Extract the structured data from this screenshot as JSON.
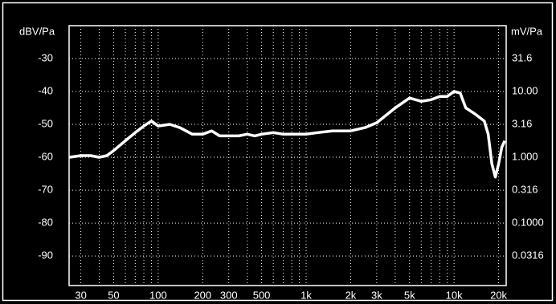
{
  "chart_data": {
    "type": "line",
    "y_label": "dBV/Pa",
    "y2_label": "mV/Pa",
    "x": [
      25,
      30,
      35,
      40,
      45,
      50,
      60,
      70,
      80,
      90,
      100,
      120,
      140,
      170,
      200,
      230,
      260,
      300,
      350,
      400,
      450,
      500,
      600,
      700,
      800,
      1000,
      1200,
      1500,
      2000,
      2500,
      3000,
      4000,
      5000,
      6000,
      7000,
      8000,
      9000,
      10000,
      11000,
      12000,
      14000,
      16000,
      17000,
      18000,
      19000,
      20000,
      21000,
      22000
    ],
    "series": [
      {
        "color": "#ffffff",
        "values": [
          -60,
          -59.5,
          -59.5,
          -60,
          -59.5,
          -58,
          -55,
          -52.5,
          -50.5,
          -49,
          -50.5,
          -50,
          -51,
          -53,
          -53,
          -52,
          -53.5,
          -53.5,
          -53.5,
          -53,
          -53.5,
          -53,
          -52.5,
          -53,
          -53,
          -53,
          -52.5,
          -52,
          -52,
          -51,
          -49.5,
          -45,
          -42,
          -43,
          -42.5,
          -41.5,
          -41.5,
          -40,
          -40.5,
          -45,
          -47,
          -49,
          -53,
          -62,
          -66,
          -62,
          -57,
          -55
        ]
      }
    ],
    "xlog": true,
    "xlim": [
      25,
      22500
    ],
    "xticks": [
      30,
      50,
      100,
      200,
      300,
      500,
      {
        "value": 1000,
        "label": "1k"
      },
      {
        "value": 2000,
        "label": "2k"
      },
      {
        "value": 3000,
        "label": "3k"
      },
      {
        "value": 5000,
        "label": "5k"
      },
      {
        "value": 10000,
        "label": "10k"
      },
      {
        "value": 20000,
        "label": "20k"
      }
    ],
    "xminor": [
      40,
      60,
      70,
      80,
      90,
      400,
      600,
      700,
      800,
      900,
      4000,
      6000,
      7000,
      8000,
      9000
    ],
    "ylim": [
      -99,
      -20
    ],
    "yticks": [
      -30,
      -40,
      -50,
      -60,
      -70,
      -80,
      -90
    ],
    "y2log": true,
    "y2lim": [
      0.0112,
      100
    ],
    "y2ticks": [
      31.6,
      {
        "value": 10,
        "label": "10.00"
      },
      3.16,
      {
        "value": 1,
        "label": "1.000"
      },
      0.316,
      {
        "value": 0.1,
        "label": "0.1000"
      },
      0.0316
    ],
    "grid": true
  }
}
